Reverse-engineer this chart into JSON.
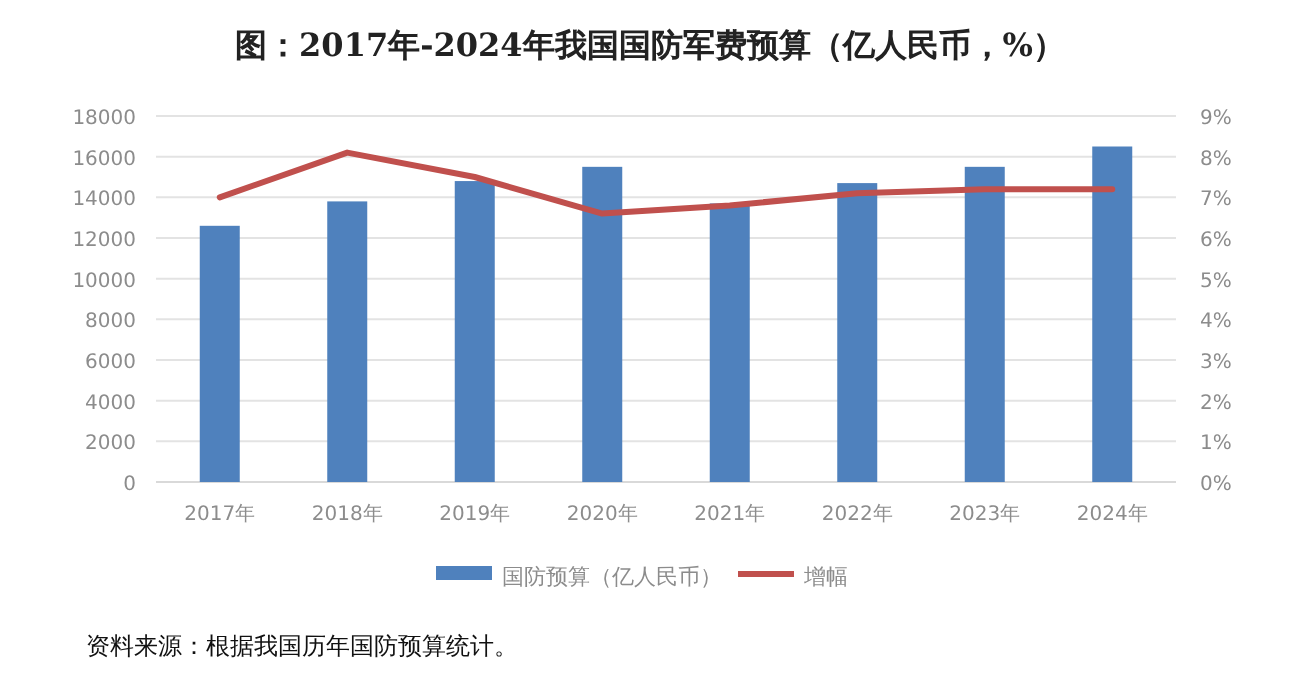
{
  "chart_data": {
    "type": "bar",
    "title": "图：2017年-2024年我国国防军费预算（亿人民币，%）",
    "categories": [
      "2017年",
      "2018年",
      "2019年",
      "2020年",
      "2021年",
      "2022年",
      "2023年",
      "2024年"
    ],
    "series": [
      {
        "name": "国防预算（亿人民币）",
        "color": "#4f81bd",
        "values": [
          12600,
          13800,
          14800,
          15500,
          13700,
          14700,
          15500,
          16500
        ]
      },
      {
        "name": "增幅",
        "type": "line",
        "axis": "y2",
        "color": "#c0504d",
        "values": [
          7.0,
          8.1,
          7.5,
          6.6,
          6.8,
          7.1,
          7.2,
          7.2
        ]
      }
    ],
    "ylim": [
      0,
      18000
    ],
    "yticks": [
      0,
      2000,
      4000,
      6000,
      8000,
      10000,
      12000,
      14000,
      16000,
      18000
    ],
    "y2lim": [
      0,
      9
    ],
    "y2ticks": [
      {
        "value": 0,
        "label": "0%"
      },
      {
        "value": 1,
        "label": "1%"
      },
      {
        "value": 2,
        "label": "2%"
      },
      {
        "value": 3,
        "label": "3%"
      },
      {
        "value": 4,
        "label": "4%"
      },
      {
        "value": 5,
        "label": "5%"
      },
      {
        "value": 6,
        "label": "6%"
      },
      {
        "value": 7,
        "label": "7%"
      },
      {
        "value": 8,
        "label": "8%"
      },
      {
        "value": 9,
        "label": "9%"
      }
    ],
    "grid": "y",
    "legend": "bottom",
    "marker": "none",
    "line_style": "solid",
    "annotations": [
      "资料来源：根据我国历年国防预算统计。"
    ]
  }
}
